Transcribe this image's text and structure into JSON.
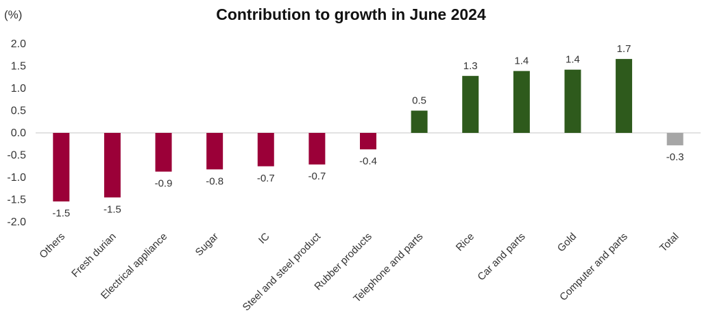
{
  "chart_data": {
    "type": "bar",
    "title": "Contribution to growth in June 2024",
    "unit_label": "(%)",
    "xlabel": "",
    "ylabel": "",
    "ylim": [
      -2.0,
      2.0
    ],
    "yticks": [
      "2.0",
      "1.5",
      "1.0",
      "0.5",
      "0.0",
      "-0.5",
      "-1.0",
      "-1.5",
      "-2.0"
    ],
    "grid": false,
    "categories": [
      "Others",
      "Fresh durian",
      "Electrical appliance",
      "Sugar",
      "IC",
      "Steel and steel product",
      "Rubber products",
      "Telephone and parts",
      "Rice",
      "Car and parts",
      "Gold",
      "Computer and parts",
      "Total"
    ],
    "values": [
      -1.54,
      -1.45,
      -0.87,
      -0.82,
      -0.75,
      -0.71,
      -0.37,
      0.5,
      1.28,
      1.39,
      1.42,
      1.66,
      -0.28
    ],
    "data_labels": [
      "-1.5",
      "-1.5",
      "-0.9",
      "-0.8",
      "-0.7",
      "-0.7",
      "-0.4",
      "0.5",
      "1.3",
      "1.4",
      "1.4",
      "1.7",
      "-0.3"
    ],
    "colors": {
      "negative": "#9b0038",
      "positive": "#2e5a1c",
      "total": "#a6a6a6"
    }
  }
}
